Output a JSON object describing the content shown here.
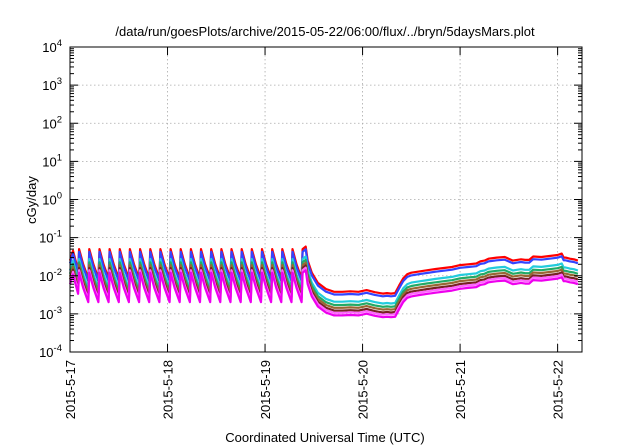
{
  "chart_data": {
    "type": "line",
    "title": "/data/run/goesPlots/archive/2015-05-22/06:00/flux/../bryn/5daysMars.plot",
    "xlabel": "Coordinated Universal Time (UTC)",
    "ylabel": "cGy/day",
    "yscale": "log",
    "ylim": [
      0.0001,
      10000
    ],
    "y_ticks": [
      {
        "value": 0.0001,
        "base": "10",
        "exp": "-4"
      },
      {
        "value": 0.001,
        "base": "10",
        "exp": "-3"
      },
      {
        "value": 0.01,
        "base": "10",
        "exp": "-2"
      },
      {
        "value": 0.1,
        "base": "10",
        "exp": "-1"
      },
      {
        "value": 1,
        "base": "10",
        "exp": "0"
      },
      {
        "value": 10,
        "base": "10",
        "exp": "1"
      },
      {
        "value": 100,
        "base": "10",
        "exp": "2"
      },
      {
        "value": 1000,
        "base": "10",
        "exp": "3"
      },
      {
        "value": 10000,
        "base": "10",
        "exp": "4"
      }
    ],
    "xlim": [
      "2015-05-17 00:00",
      "2015-05-22 06:00"
    ],
    "x_ticks": [
      "2015-5-17",
      "2015-5-18",
      "2015-5-19",
      "2015-5-20",
      "2015-5-21",
      "2015-5-22"
    ],
    "grid": true,
    "series": [
      {
        "color": "#ff0000",
        "ratio": 1.0
      },
      {
        "color": "#3344ff",
        "ratio": 0.85
      },
      {
        "color": "#22ccdd",
        "ratio": 0.55
      },
      {
        "color": "#22aa66",
        "ratio": 0.45
      },
      {
        "color": "#996633",
        "ratio": 0.38
      },
      {
        "color": "#772222",
        "ratio": 0.32
      },
      {
        "color": "#ff66ff",
        "ratio": 0.28
      },
      {
        "color": "#ee00ee",
        "ratio": 0.24
      }
    ],
    "envelope": {
      "x": [
        "2015-05-17 00:00",
        "2015-05-17 00:45",
        "2015-05-17 02:00",
        "2015-05-17 02:15",
        "2015-05-17 03:15",
        "2015-05-17 04:30",
        "2015-05-17 04:45",
        "2015-05-17 05:45",
        "2015-05-17 07:00",
        "2015-05-17 07:15",
        "2015-05-17 08:15",
        "2015-05-17 09:30",
        "2015-05-17 09:45",
        "2015-05-17 10:45",
        "2015-05-17 12:00",
        "2015-05-17 12:15",
        "2015-05-17 13:15",
        "2015-05-17 14:30",
        "2015-05-17 14:45",
        "2015-05-17 15:45",
        "2015-05-17 17:00",
        "2015-05-17 17:15",
        "2015-05-17 18:15",
        "2015-05-17 19:30",
        "2015-05-17 19:45",
        "2015-05-17 20:45",
        "2015-05-17 22:00",
        "2015-05-17 22:15",
        "2015-05-17 23:15",
        "2015-05-18 00:30",
        "2015-05-18 00:45",
        "2015-05-18 01:45",
        "2015-05-18 03:00",
        "2015-05-18 03:15",
        "2015-05-18 04:15",
        "2015-05-18 05:30",
        "2015-05-18 05:45",
        "2015-05-18 06:45",
        "2015-05-18 08:00",
        "2015-05-18 08:15",
        "2015-05-18 09:15",
        "2015-05-18 10:30",
        "2015-05-18 10:45",
        "2015-05-18 11:45",
        "2015-05-18 13:00",
        "2015-05-18 13:15",
        "2015-05-18 14:15",
        "2015-05-18 15:30",
        "2015-05-18 15:45",
        "2015-05-18 16:45",
        "2015-05-18 18:00",
        "2015-05-18 18:15",
        "2015-05-18 19:15",
        "2015-05-18 20:30",
        "2015-05-18 20:45",
        "2015-05-18 21:45",
        "2015-05-18 23:00",
        "2015-05-18 23:15",
        "2015-05-19 00:15",
        "2015-05-19 01:30",
        "2015-05-19 01:45",
        "2015-05-19 02:45",
        "2015-05-19 04:00",
        "2015-05-19 04:15",
        "2015-05-19 05:15",
        "2015-05-19 06:30",
        "2015-05-19 06:45",
        "2015-05-19 07:45",
        "2015-05-19 09:00",
        "2015-05-19 09:15",
        "2015-05-19 10:00",
        "2015-05-19 10:30",
        "2015-05-19 11:30",
        "2015-05-19 13:00",
        "2015-05-19 15:00",
        "2015-05-19 17:00",
        "2015-05-19 19:00",
        "2015-05-19 21:00",
        "2015-05-19 23:00",
        "2015-05-20 01:00",
        "2015-05-20 03:00",
        "2015-05-20 05:00",
        "2015-05-20 06:00",
        "2015-05-20 07:00",
        "2015-05-20 08:00",
        "2015-05-20 09:00",
        "2015-05-20 10:00",
        "2015-05-20 11:00",
        "2015-05-20 12:00",
        "2015-05-20 14:00",
        "2015-05-20 16:00",
        "2015-05-20 18:00",
        "2015-05-20 20:00",
        "2015-05-20 22:00",
        "2015-05-21 00:00",
        "2015-05-21 02:00",
        "2015-05-21 04:00",
        "2015-05-21 05:00",
        "2015-05-21 06:00",
        "2015-05-21 07:00",
        "2015-05-21 09:00",
        "2015-05-21 11:00",
        "2015-05-21 13:00",
        "2015-05-21 14:00",
        "2015-05-21 15:00",
        "2015-05-21 16:00",
        "2015-05-21 17:00",
        "2015-05-21 18:00",
        "2015-05-21 20:00",
        "2015-05-21 21:00",
        "2015-05-21 23:00",
        "2015-05-22 00:00",
        "2015-05-22 01:00",
        "2015-05-22 01:30",
        "2015-05-22 02:00",
        "2015-05-22 03:00",
        "2015-05-22 04:00",
        "2015-05-22 05:00",
        "2015-05-22 06:00"
      ],
      "top": [
        0.025,
        0.045,
        0.014,
        0.05,
        0.02,
        0.0085,
        0.05,
        0.02,
        0.0085,
        0.05,
        0.02,
        0.0085,
        0.05,
        0.02,
        0.0085,
        0.05,
        0.02,
        0.0085,
        0.05,
        0.02,
        0.0085,
        0.05,
        0.02,
        0.0085,
        0.05,
        0.02,
        0.0085,
        0.05,
        0.02,
        0.0085,
        0.05,
        0.02,
        0.0085,
        0.05,
        0.02,
        0.0085,
        0.05,
        0.02,
        0.0085,
        0.05,
        0.02,
        0.0085,
        0.05,
        0.02,
        0.0085,
        0.05,
        0.02,
        0.0085,
        0.05,
        0.02,
        0.0085,
        0.05,
        0.02,
        0.0085,
        0.05,
        0.02,
        0.0085,
        0.05,
        0.02,
        0.0085,
        0.05,
        0.02,
        0.0085,
        0.05,
        0.02,
        0.0085,
        0.05,
        0.02,
        0.0085,
        0.05,
        0.058,
        0.025,
        0.012,
        0.0065,
        0.0045,
        0.0038,
        0.0038,
        0.0039,
        0.0038,
        0.0042,
        0.0037,
        0.0034,
        0.0035,
        0.0034,
        0.0035,
        0.0055,
        0.0085,
        0.011,
        0.012,
        0.013,
        0.014,
        0.015,
        0.016,
        0.017,
        0.019,
        0.02,
        0.021,
        0.024,
        0.025,
        0.028,
        0.03,
        0.031,
        0.025,
        0.026,
        0.027,
        0.026,
        0.026,
        0.032,
        0.031,
        0.032,
        0.034,
        0.035,
        0.038,
        0.03,
        0.03,
        0.028,
        0.027,
        0.025
      ]
    }
  }
}
